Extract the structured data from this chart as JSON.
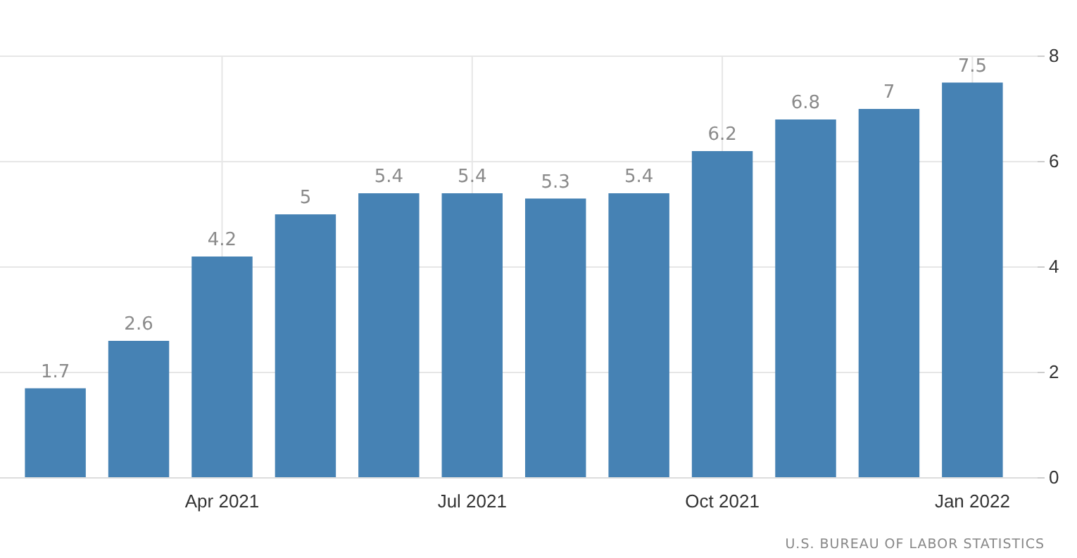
{
  "chart_data": {
    "type": "bar",
    "categories": [
      null,
      null,
      "Apr 2021",
      null,
      null,
      "Jul 2021",
      null,
      null,
      "Oct 2021",
      null,
      null,
      "Jan 2022"
    ],
    "values": [
      1.7,
      2.6,
      4.2,
      5,
      5.4,
      5.4,
      5.3,
      5.4,
      6.2,
      6.8,
      7,
      7.5
    ],
    "color": "#4682b4",
    "ylim": [
      0,
      8
    ],
    "yticks": [
      0,
      2,
      4,
      6,
      8
    ],
    "grid": true,
    "data_labels": true,
    "annotations": [
      "U.S. BUREAU OF LABOR STATISTICS"
    ]
  }
}
